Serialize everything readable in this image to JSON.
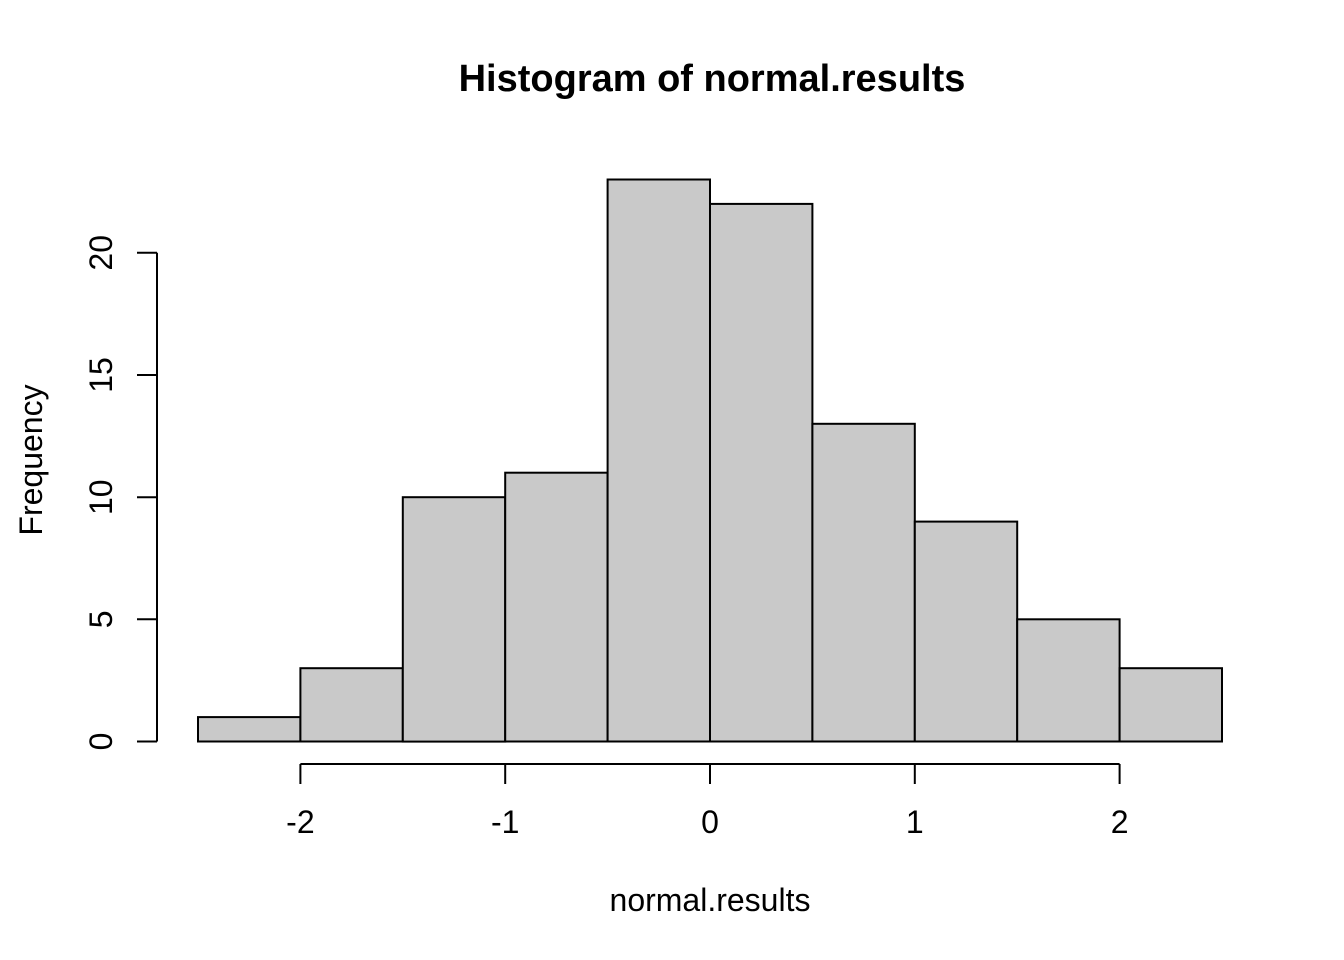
{
  "chart_data": {
    "type": "bar",
    "subtype": "histogram",
    "title": "Histogram of normal.results",
    "xlabel": "normal.results",
    "ylabel": "Frequency",
    "breaks": [
      -2.5,
      -2.0,
      -1.5,
      -1.0,
      -0.5,
      0.0,
      0.5,
      1.0,
      1.5,
      2.0,
      2.5
    ],
    "counts": [
      1,
      3,
      10,
      11,
      23,
      22,
      13,
      9,
      5,
      3
    ],
    "x_ticks": [
      -2,
      -1,
      0,
      1,
      2
    ],
    "y_ticks": [
      0,
      5,
      10,
      15,
      20
    ],
    "xlim": [
      -2.5,
      2.5
    ],
    "ylim": [
      0,
      23
    ],
    "grid": "off",
    "legend": "none",
    "colors": {
      "bar_fill": "#c9c9c9",
      "bar_stroke": "#000000",
      "axis": "#000000",
      "text": "#000000",
      "background": "#ffffff"
    }
  }
}
